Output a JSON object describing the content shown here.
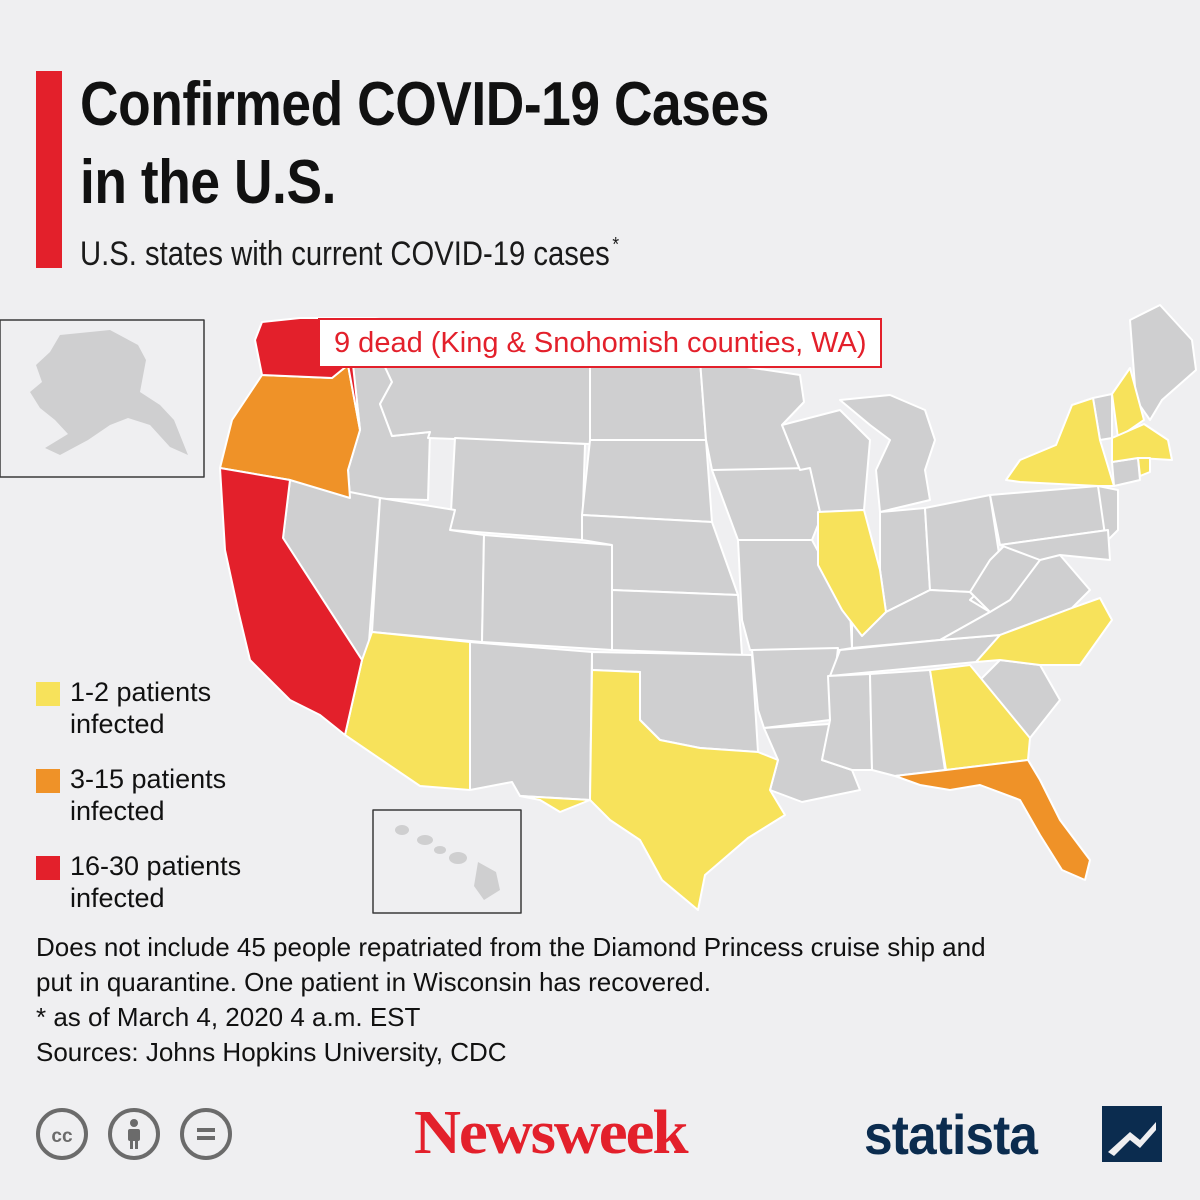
{
  "header": {
    "title_line1": "Confirmed COVID-19 Cases",
    "title_line2": "in the U.S.",
    "subtitle": "U.S. states with current COVID-19 cases",
    "subtitle_mark": "*"
  },
  "callout": {
    "text": "9 dead (King & Snohomish counties, WA)"
  },
  "legend": [
    {
      "label_line1": "1-2 patients",
      "label_line2": "infected",
      "color": "#f7e25b"
    },
    {
      "label_line1": "3-15 patients",
      "label_line2": "infected",
      "color": "#ef9228"
    },
    {
      "label_line1": "16-30 patients",
      "label_line2": "infected",
      "color": "#e3202b"
    }
  ],
  "map_data": {
    "categories": {
      "none": "#cfcfd0",
      "1-2 patients infected": "#f7e25b",
      "3-15 patients infected": "#ef9228",
      "16-30 patients infected": "#e3202b"
    },
    "states_highlighted": {
      "WA": "16-30 patients infected",
      "CA": "16-30 patients infected",
      "OR": "3-15 patients infected",
      "FL": "3-15 patients infected",
      "AZ": "1-2 patients infected",
      "TX": "1-2 patients infected",
      "IL": "1-2 patients infected",
      "GA": "1-2 patients infected",
      "NC": "1-2 patients infected",
      "NY": "1-2 patients infected",
      "NH": "1-2 patients infected",
      "MA": "1-2 patients infected",
      "RI": "1-2 patients infected"
    },
    "insets": [
      "Alaska",
      "Hawaii"
    ]
  },
  "footnotes": {
    "line1": "Does not include 45 people repatriated from the Diamond Princess cruise ship and",
    "line2": "put in quarantine. One patient in Wisconsin has recovered.",
    "line3": "* as of March 4, 2020 4 a.m. EST",
    "line4": "Sources: Johns Hopkins University, CDC"
  },
  "footer": {
    "license_icons": [
      "cc-icon",
      "attribution-icon",
      "no-derivatives-icon"
    ],
    "newsweek_logo": "Newsweek",
    "statista_logo": "statista"
  }
}
